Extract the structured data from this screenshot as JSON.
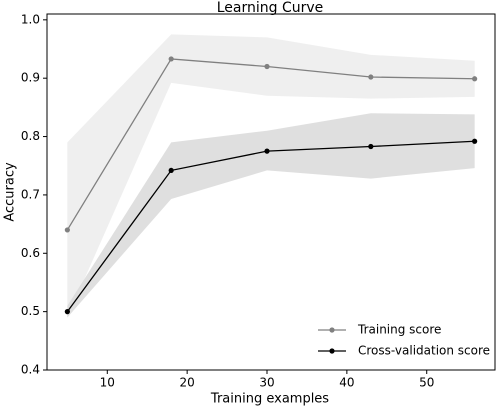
{
  "chart_data": {
    "type": "line",
    "title": "Learning Curve",
    "x_label": "Training examples",
    "y_label": "Accuracy",
    "x": [
      5,
      18,
      30,
      43,
      56
    ],
    "series": [
      {
        "name": "Training score",
        "color": "#808080",
        "band_color": "#ececec",
        "values": [
          0.64,
          0.933,
          0.92,
          0.902,
          0.899
        ],
        "upper": [
          0.79,
          0.975,
          0.97,
          0.94,
          0.93
        ],
        "lower": [
          0.49,
          0.892,
          0.87,
          0.865,
          0.868
        ]
      },
      {
        "name": "Cross-validation score",
        "color": "#000000",
        "band_color": "#d9d9d9",
        "values": [
          0.5,
          0.742,
          0.775,
          0.783,
          0.792
        ],
        "upper": [
          0.51,
          0.79,
          0.81,
          0.84,
          0.838
        ],
        "lower": [
          0.49,
          0.693,
          0.742,
          0.728,
          0.746
        ]
      }
    ],
    "xlim": [
      2.45,
      58.55
    ],
    "xticks": [
      10,
      20,
      30,
      40,
      50
    ],
    "ylim": [
      0.4,
      1.01
    ],
    "yticks": [
      0.4,
      0.5,
      0.6,
      0.7,
      0.8,
      0.9,
      {
        "value": 1,
        "label": "1.0"
      }
    ],
    "legend": "lower right"
  }
}
